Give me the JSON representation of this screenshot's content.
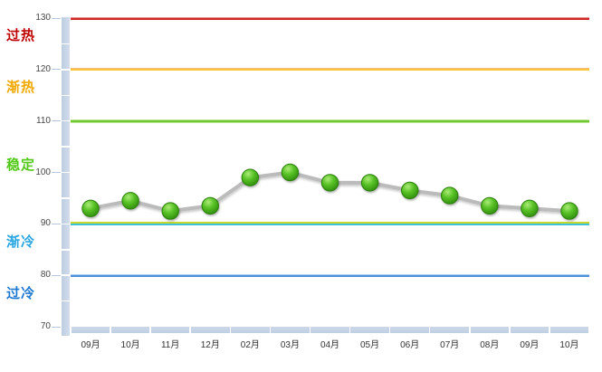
{
  "chart_data": {
    "type": "line",
    "title": "",
    "categories": [
      "09月",
      "10月",
      "11月",
      "12月",
      "02月",
      "03月",
      "04月",
      "05月",
      "06月",
      "07月",
      "08月",
      "09月",
      "10月"
    ],
    "series": [
      {
        "values": [
          93,
          94.5,
          92.5,
          93.5,
          99,
          100,
          98,
          98,
          96.5,
          95.5,
          93.5,
          93,
          92.5
        ]
      }
    ],
    "ylim": [
      70,
      130
    ],
    "y_ticks": [
      130,
      120,
      110,
      100,
      90,
      80,
      70
    ],
    "grid": "off",
    "legend": "none",
    "line_color": "#bbbbbb",
    "marker_color": "#4eb51e",
    "axis_band_color": "#c5d3e6",
    "thresholds": [
      {
        "value": 130,
        "color": "#d12626",
        "glow": "#e88a8a"
      },
      {
        "value": 120,
        "color": "#fcc53c",
        "glow": "#f5ba7c"
      },
      {
        "value": 110,
        "color": "#6fc832",
        "glow": "#bce695"
      },
      {
        "value": 90,
        "color": "#3cc3db",
        "color_top": "#c8d82b"
      },
      {
        "value": 80,
        "color": "#4b90d8",
        "glow": "#a9cdef"
      }
    ],
    "zones": [
      {
        "label": "过热",
        "range": [
          120,
          130
        ],
        "color": "#c00000"
      },
      {
        "label": "渐热",
        "range": [
          110,
          120
        ],
        "color": "#f2a800"
      },
      {
        "label": "稳定",
        "range": [
          90,
          110
        ],
        "color": "#52c816"
      },
      {
        "label": "渐冷",
        "range": [
          80,
          90
        ],
        "color": "#29a6e2"
      },
      {
        "label": "过冷",
        "range": [
          70,
          80
        ],
        "color": "#1e78d2"
      }
    ]
  }
}
